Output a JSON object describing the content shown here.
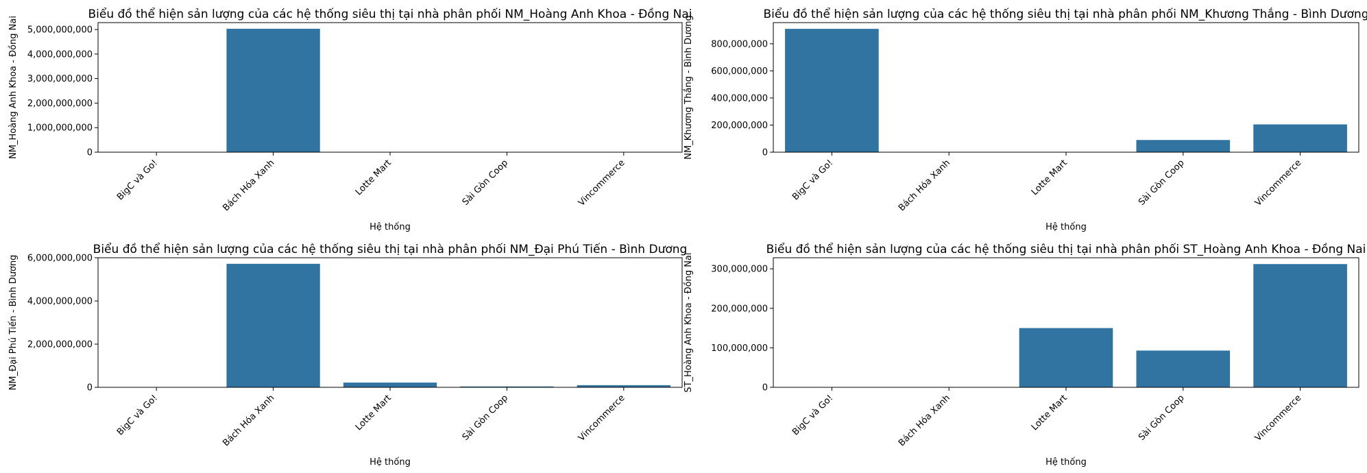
{
  "chart_data": [
    {
      "type": "bar",
      "title": "Biểu đồ thể hiện sản lượng của các hệ thống siêu thị tại nhà phân phối NM_Hoàng Anh Khoa - Đồng Nai",
      "xlabel": "Hệ thống",
      "ylabel": "NM_Hoàng Anh Khoa - Đồng Nai",
      "categories": [
        "BigC và Go!",
        "Bách Hóa Xanh",
        "Lotte Mart",
        "Sài Gòn Coop",
        "Vincommerce"
      ],
      "values": [
        0,
        5030000000,
        0,
        0,
        0
      ],
      "ylim": [
        0,
        5280000000
      ],
      "yticks": [
        0,
        1000000000,
        2000000000,
        3000000000,
        4000000000,
        5000000000
      ],
      "ytick_labels": [
        "0",
        "1,000,000,000",
        "2,000,000,000",
        "3,000,000,000",
        "4,000,000,000",
        "5,000,000,000"
      ],
      "color": "#3274a1",
      "grid": false
    },
    {
      "type": "bar",
      "title": "Biểu đồ thể hiện sản lượng của các hệ thống siêu thị tại nhà phân phối NM_Khương Thắng - Bình Dương",
      "xlabel": "Hệ thống",
      "ylabel": "NM_Khương Thắng - Bình Dương",
      "categories": [
        "BigC và Go!",
        "Bách Hóa Xanh",
        "Lotte Mart",
        "Sài Gòn Coop",
        "Vincommerce"
      ],
      "values": [
        910000000,
        0,
        0,
        90000000,
        205000000
      ],
      "ylim": [
        0,
        956000000
      ],
      "yticks": [
        0,
        200000000,
        400000000,
        600000000,
        800000000
      ],
      "ytick_labels": [
        "0",
        "200,000,000",
        "400,000,000",
        "600,000,000",
        "800,000,000"
      ],
      "color": "#3274a1",
      "grid": false
    },
    {
      "type": "bar",
      "title": "Biểu đồ thể hiện sản lượng của các hệ thống siêu thị tại nhà phân phối NM_Đại Phú Tiến - Bình Dương",
      "xlabel": "Hệ thống",
      "ylabel": "NM_Đại Phú Tiến - Bình Dương",
      "categories": [
        "BigC và Go!",
        "Bách Hóa Xanh",
        "Lotte Mart",
        "Sài Gòn Coop",
        "Vincommerce"
      ],
      "values": [
        0,
        5720000000,
        220000000,
        40000000,
        100000000
      ],
      "ylim": [
        0,
        6000000000
      ],
      "yticks": [
        0,
        2000000000,
        4000000000,
        6000000000
      ],
      "ytick_labels": [
        "0",
        "2,000,000,000",
        "4,000,000,000",
        "6,000,000,000"
      ],
      "color": "#3274a1",
      "grid": false
    },
    {
      "type": "bar",
      "title": "Biểu đồ thể hiện sản lượng của các hệ thống siêu thị tại nhà phân phối ST_Hoàng Anh Khoa - Đồng Nai",
      "xlabel": "Hệ thống",
      "ylabel": "ST_Hoàng Anh Khoa - Đồng Nai",
      "categories": [
        "BigC và Go!",
        "Bách Hóa Xanh",
        "Lotte Mart",
        "Sài Gòn Coop",
        "Vincommerce"
      ],
      "values": [
        0,
        0,
        150000000,
        93000000,
        312000000
      ],
      "ylim": [
        0,
        328000000
      ],
      "yticks": [
        0,
        100000000,
        200000000,
        300000000
      ],
      "ytick_labels": [
        "0",
        "100,000,000",
        "200,000,000",
        "300,000,000"
      ],
      "color": "#3274a1",
      "grid": false
    }
  ]
}
